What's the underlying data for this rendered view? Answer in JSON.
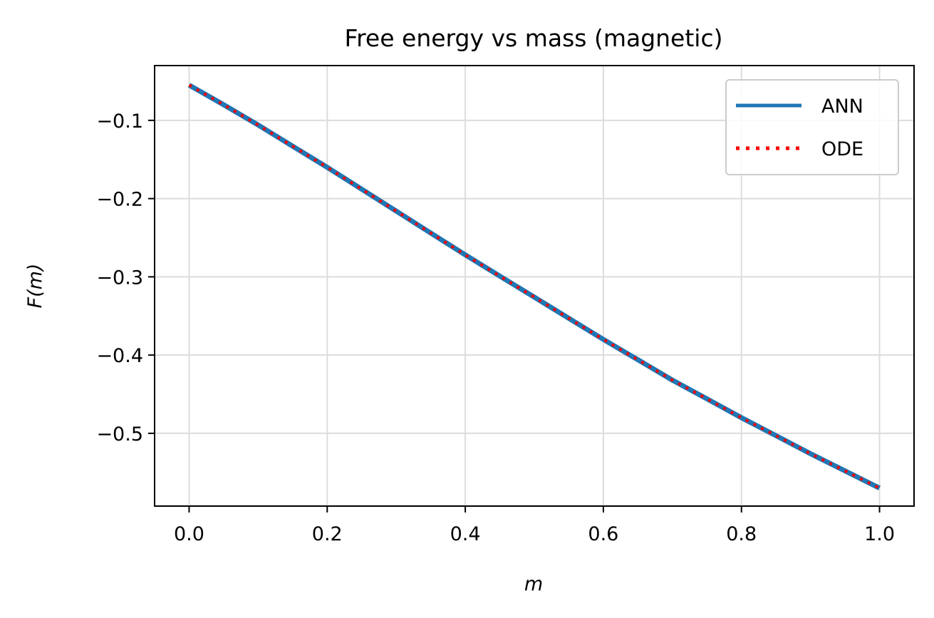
{
  "chart_data": {
    "type": "line",
    "title": "Free energy vs mass (magnetic)",
    "xlabel": "m",
    "ylabel": "F(m)",
    "xlim": [
      -0.05,
      1.05
    ],
    "ylim": [
      -0.593,
      -0.03
    ],
    "xticks": [
      0.0,
      0.2,
      0.4,
      0.6,
      0.8,
      1.0
    ],
    "xtick_labels": [
      "0.0",
      "0.2",
      "0.4",
      "0.6",
      "0.8",
      "1.0"
    ],
    "yticks": [
      -0.1,
      -0.2,
      -0.3,
      -0.4,
      -0.5
    ],
    "ytick_labels": [
      "−0.1",
      "−0.2",
      "−0.3",
      "−0.4",
      "−0.5"
    ],
    "grid": true,
    "legend_position": "top-right",
    "series": [
      {
        "name": "ANN",
        "style": "solid",
        "color": "#1f77b4",
        "x": [
          0.0,
          0.05,
          0.1,
          0.15,
          0.2,
          0.25,
          0.3,
          0.35,
          0.4,
          0.45,
          0.5,
          0.55,
          0.6,
          0.65,
          0.7,
          0.75,
          0.8,
          0.85,
          0.9,
          0.95,
          1.0
        ],
        "y": [
          -0.055,
          -0.08,
          -0.106,
          -0.133,
          -0.16,
          -0.188,
          -0.216,
          -0.244,
          -0.272,
          -0.299,
          -0.326,
          -0.353,
          -0.38,
          -0.406,
          -0.432,
          -0.456,
          -0.48,
          -0.503,
          -0.526,
          -0.548,
          -0.57
        ]
      },
      {
        "name": "ODE",
        "style": "dotted",
        "color": "#ff0000",
        "x": [
          0.0,
          0.05,
          0.1,
          0.15,
          0.2,
          0.25,
          0.3,
          0.35,
          0.4,
          0.45,
          0.5,
          0.55,
          0.6,
          0.65,
          0.7,
          0.75,
          0.8,
          0.85,
          0.9,
          0.95,
          1.0
        ],
        "y": [
          -0.055,
          -0.08,
          -0.106,
          -0.133,
          -0.16,
          -0.188,
          -0.216,
          -0.244,
          -0.272,
          -0.299,
          -0.326,
          -0.353,
          -0.38,
          -0.406,
          -0.432,
          -0.456,
          -0.48,
          -0.503,
          -0.526,
          -0.548,
          -0.57
        ]
      }
    ]
  }
}
